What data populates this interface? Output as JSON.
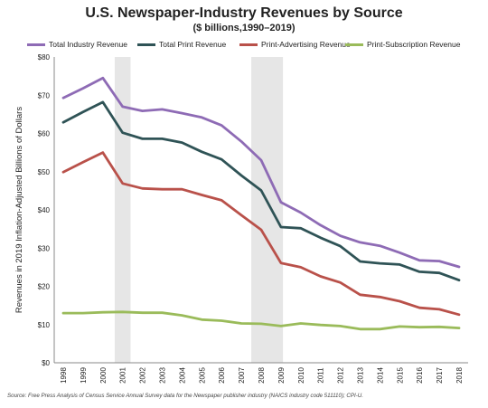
{
  "chart_data": {
    "type": "line",
    "title": "U.S. Newspaper-Industry Revenues by Source",
    "subtitle": "($ billions,1990–2019)",
    "ylabel": "Revenues in 2019 Inflation-Adjusted Billions of Dollars",
    "xlabel": "",
    "ylim": [
      0,
      80
    ],
    "yticks": [
      "$0",
      "$10",
      "$20",
      "$30",
      "$40",
      "$50",
      "$60",
      "$70",
      "$80"
    ],
    "x": [
      "1998",
      "1999",
      "2000",
      "2001",
      "2002",
      "2003",
      "2004",
      "2005",
      "2006",
      "2007",
      "2008",
      "2009",
      "2010",
      "2011",
      "2012",
      "2013",
      "2014",
      "2015",
      "2016",
      "2017",
      "2018"
    ],
    "series": [
      {
        "name": "Total Industry Revenue",
        "color": "#8e6bb5",
        "values": [
          69.3,
          71.8,
          74.5,
          67.0,
          65.9,
          66.3,
          65.3,
          64.2,
          62.1,
          57.9,
          53.0,
          42.0,
          39.3,
          36.0,
          33.2,
          31.5,
          30.6,
          28.8,
          26.8,
          26.6,
          25.1
        ]
      },
      {
        "name": "Total Print Revenue",
        "color": "#2f5356",
        "values": [
          62.9,
          65.6,
          68.2,
          60.2,
          58.6,
          58.6,
          57.6,
          55.2,
          53.2,
          49.0,
          45.1,
          35.5,
          35.2,
          32.7,
          30.5,
          26.5,
          26.0,
          25.7,
          23.8,
          23.5,
          21.6
        ]
      },
      {
        "name": "Print-Advertising Revenue",
        "color": "#b9514a",
        "values": [
          49.9,
          52.5,
          55.0,
          46.9,
          45.6,
          45.4,
          45.4,
          43.9,
          42.5,
          38.6,
          34.8,
          26.1,
          25.0,
          22.6,
          21.0,
          17.8,
          17.2,
          16.1,
          14.4,
          14.0,
          12.6
        ]
      },
      {
        "name": "Print-Subscription Revenue",
        "color": "#9abb5a",
        "values": [
          13.0,
          13.0,
          13.2,
          13.3,
          13.1,
          13.1,
          12.4,
          11.3,
          11.0,
          10.3,
          10.2,
          9.6,
          10.3,
          9.9,
          9.6,
          8.8,
          8.8,
          9.5,
          9.3,
          9.4,
          9.1
        ]
      }
    ],
    "shaded_periods": [
      [
        "2000.6",
        "2001.4"
      ],
      [
        "2007.5",
        "2009.1"
      ]
    ],
    "grid": false,
    "legend": "top",
    "background": "#ffffff",
    "shade_color": "#e6e6e6"
  },
  "source_note": "Source: Free Press Analysis of Census Service Annual Survey data for the Newspaper publisher industry (NAICS industry code 511110); CPI-U."
}
